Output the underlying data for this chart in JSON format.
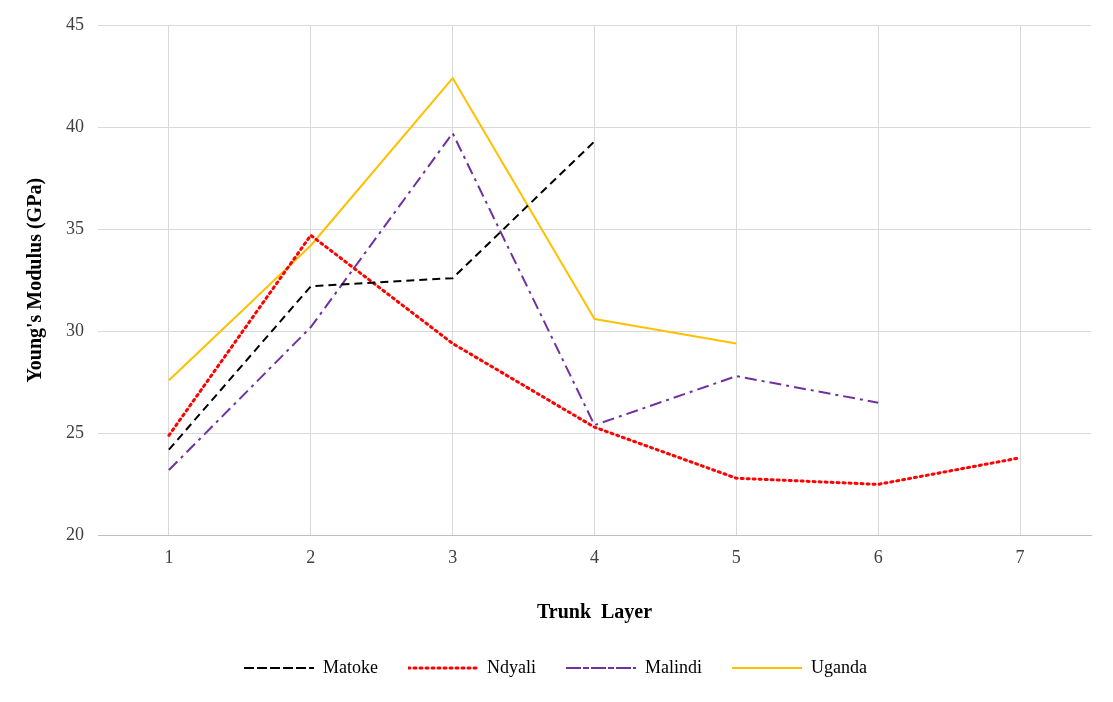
{
  "chart_data": {
    "type": "line",
    "xlabel": "Trunk  Layer",
    "ylabel": "Young's Modulus (GPa)",
    "categories": [
      "1",
      "2",
      "3",
      "4",
      "5",
      "6",
      "7"
    ],
    "series": [
      {
        "name": "Matoke",
        "color": "#000000",
        "line_style": "dashed",
        "values": [
          24.2,
          32.2,
          32.6,
          39.3,
          null,
          null,
          null
        ]
      },
      {
        "name": "Ndyali",
        "color": "#ff0000",
        "line_style": "dotted",
        "values": [
          24.9,
          34.7,
          29.4,
          25.3,
          22.8,
          22.5,
          23.8
        ]
      },
      {
        "name": "Malindi",
        "color": "#7030a0",
        "line_style": "dashdot",
        "values": [
          23.2,
          30.2,
          39.7,
          25.4,
          27.8,
          26.5,
          null
        ]
      },
      {
        "name": "Uganda",
        "color": "#ffc000",
        "line_style": "solid",
        "values": [
          27.6,
          34.2,
          42.4,
          30.6,
          29.4,
          null,
          null
        ]
      }
    ],
    "ylim": [
      20,
      45
    ],
    "yticks": [
      20,
      25,
      30,
      35,
      40,
      45
    ],
    "grid": true,
    "legend": "bottom",
    "marker": "none"
  }
}
